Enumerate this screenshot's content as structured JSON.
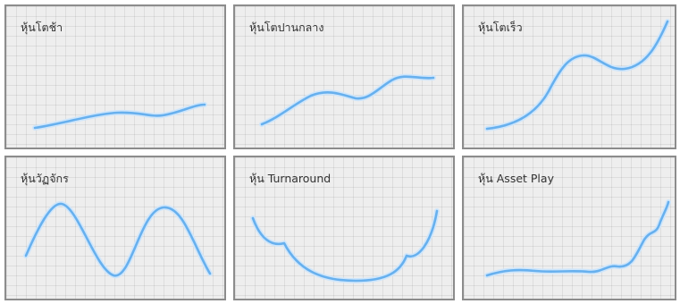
{
  "colors": {
    "panel_bg": "#eeeeee",
    "panel_border": "#8c8c8c",
    "curve": "#67b0ee",
    "text": "#333333"
  },
  "panels": [
    {
      "title": "หุ้นโตช้า"
    },
    {
      "title": "หุ้นโตปานกลาง"
    },
    {
      "title": "หุ้นโตเร็ว"
    },
    {
      "title": "หุ้นวัฏจักร"
    },
    {
      "title": "หุ้น Turnaround"
    },
    {
      "title": "หุ้น Asset Play"
    }
  ]
}
